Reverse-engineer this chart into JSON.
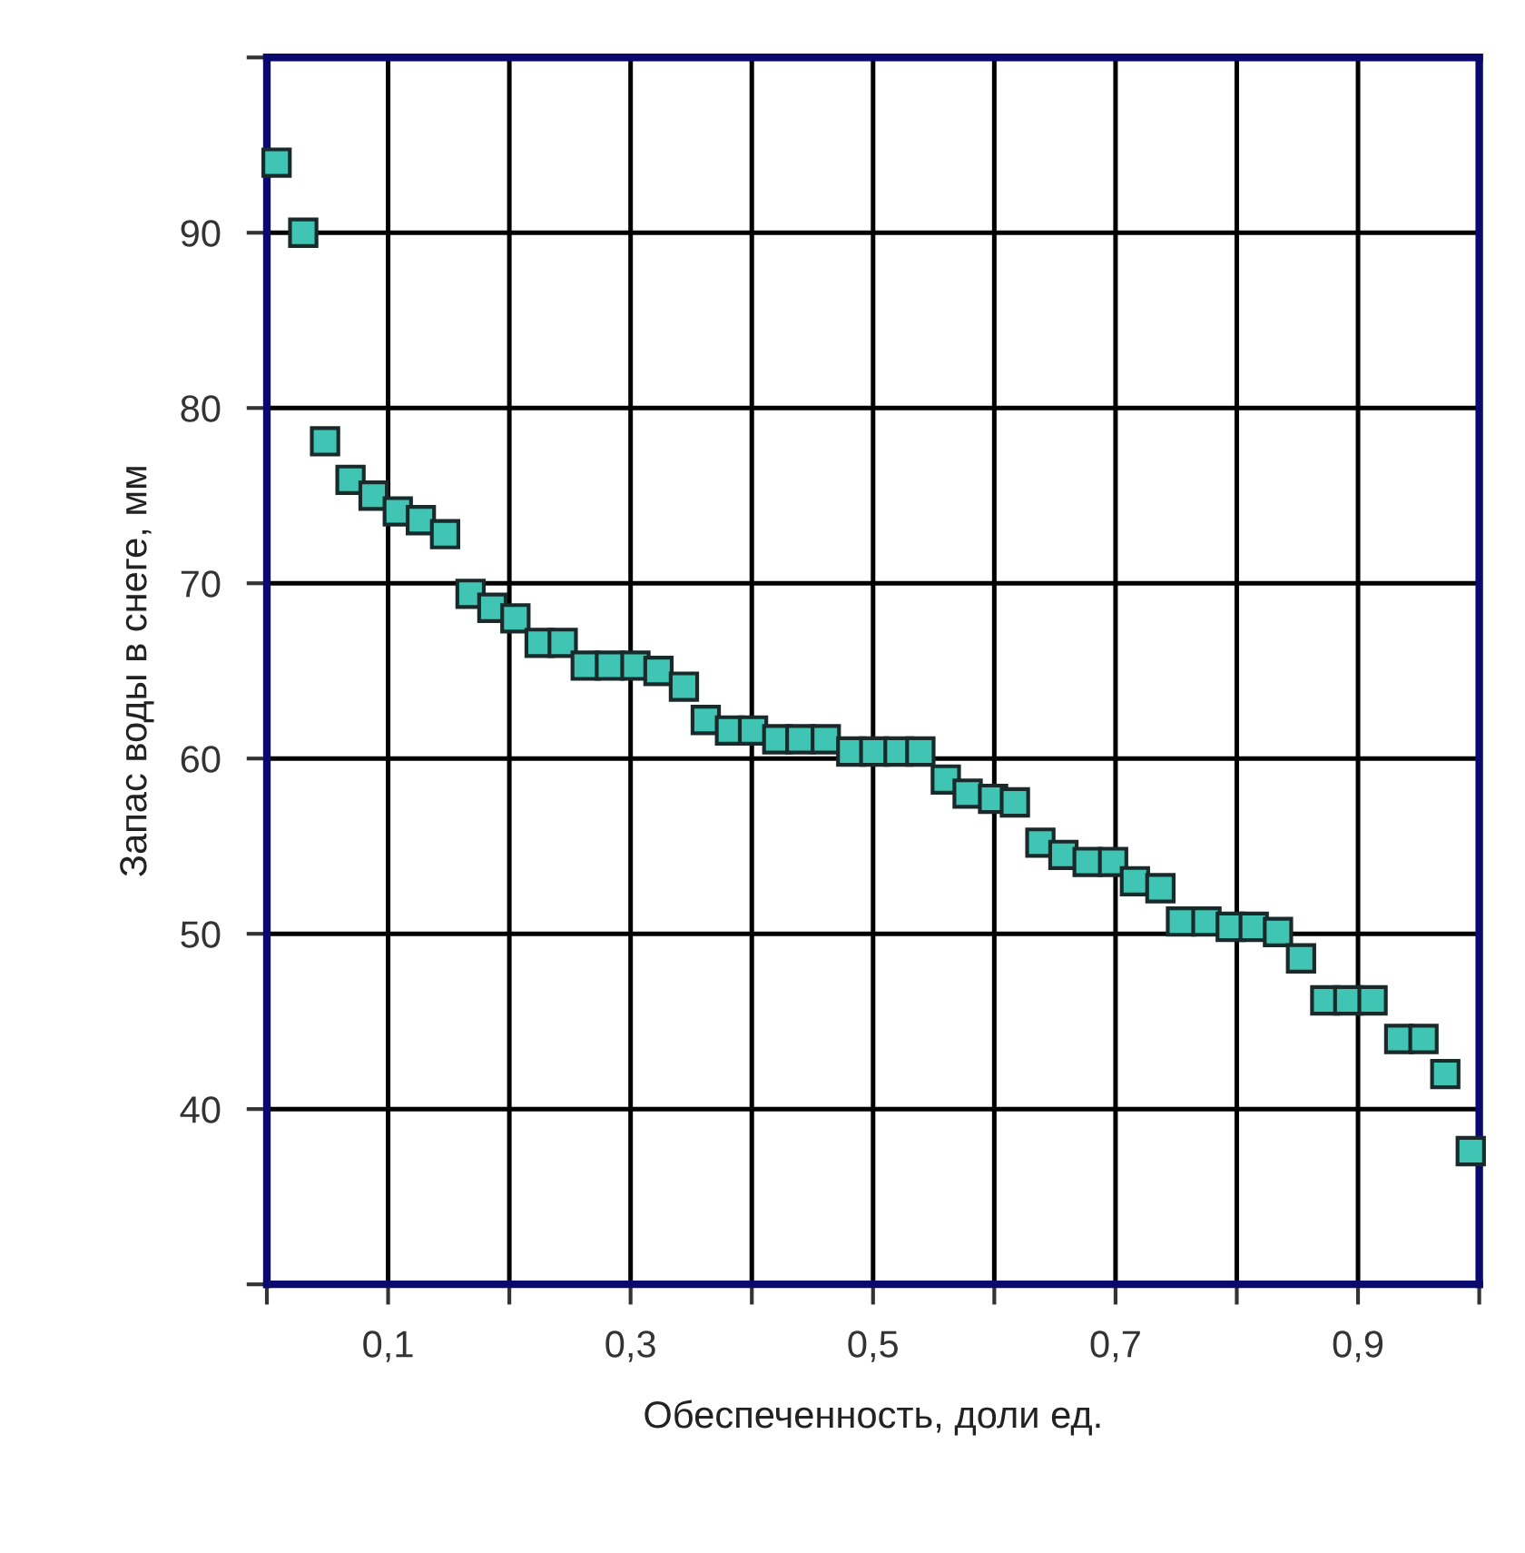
{
  "chart_data": {
    "type": "scatter",
    "xlabel": "Обеспеченность, доли ед.",
    "ylabel": "Запас воды в снеге, мм",
    "marker": "square",
    "grid": true,
    "xlim": [
      0,
      1
    ],
    "ylim": [
      30,
      100
    ],
    "xticks": [
      {
        "value": 0,
        "label": null
      },
      {
        "value": 0.1,
        "label": "0,1"
      },
      {
        "value": 0.2,
        "label": null
      },
      {
        "value": 0.3,
        "label": "0,3"
      },
      {
        "value": 0.4,
        "label": null
      },
      {
        "value": 0.5,
        "label": "0,5"
      },
      {
        "value": 0.6,
        "label": null
      },
      {
        "value": 0.7,
        "label": "0,7"
      },
      {
        "value": 0.8,
        "label": null
      },
      {
        "value": 0.9,
        "label": "0,9"
      },
      {
        "value": 1.0,
        "label": null
      }
    ],
    "yticks": [
      {
        "value": 30,
        "label": null
      },
      40,
      50,
      60,
      70,
      80,
      90,
      {
        "value": 100,
        "label": null
      }
    ],
    "series": [
      {
        "color": "#40c4b4",
        "x": [
          0.008,
          0.03,
          0.048,
          0.069,
          0.088,
          0.108,
          0.127,
          0.147,
          0.168,
          0.186,
          0.205,
          0.225,
          0.244,
          0.263,
          0.283,
          0.304,
          0.323,
          0.344,
          0.362,
          0.382,
          0.401,
          0.421,
          0.44,
          0.461,
          0.482,
          0.501,
          0.521,
          0.539,
          0.56,
          0.578,
          0.599,
          0.617,
          0.638,
          0.657,
          0.677,
          0.698,
          0.716,
          0.737,
          0.754,
          0.775,
          0.795,
          0.814,
          0.834,
          0.853,
          0.873,
          0.892,
          0.912,
          0.934,
          0.954,
          0.972,
          0.993
        ],
        "values": [
          94.0,
          90.0,
          78.1,
          75.9,
          75.0,
          74.1,
          73.6,
          72.8,
          69.4,
          68.6,
          68.0,
          66.6,
          66.6,
          65.3,
          65.3,
          65.3,
          65.0,
          64.1,
          62.2,
          61.6,
          61.6,
          61.1,
          61.1,
          61.1,
          60.4,
          60.4,
          60.4,
          60.4,
          58.8,
          58.0,
          57.7,
          57.5,
          55.2,
          54.5,
          54.1,
          54.1,
          53.0,
          52.6,
          50.7,
          50.7,
          50.4,
          50.4,
          50.1,
          48.6,
          46.2,
          46.2,
          46.2,
          44.0,
          44.0,
          42.0,
          37.6
        ]
      }
    ]
  }
}
